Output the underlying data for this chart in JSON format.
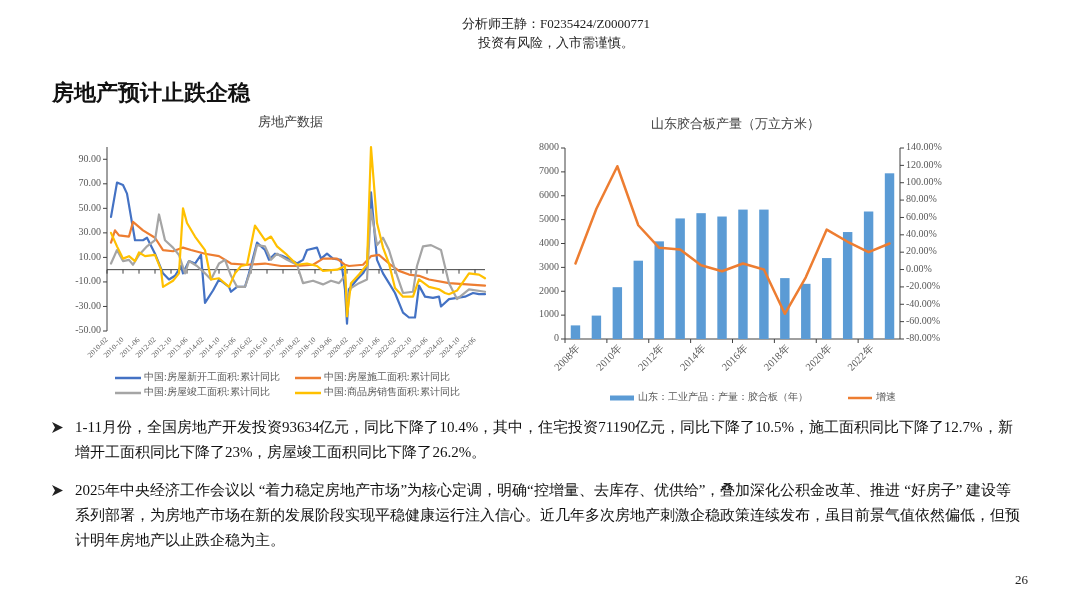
{
  "chart_data": [
    {
      "type": "other",
      "title": "房地产预计止跌企稳",
      "annotations": [
        "分析师王静：F0235424/Z0000771",
        "投资有风险，入市需谨慎。",
        "1-11月份，全国房地产开发投资93634亿元，同比下降了10.4%，其中，住宅投资71190亿元，同比下降了10.5%，施工面积同比下降了12.7%，新增开工面积同比下降了23%，房屋竣工面积同比下降了26.2%。",
        "2025年中央经济工作会议以 “着力稳定房地产市场”为核心定调，明确“控增量、去库存、优供给”，叠加深化公积金改革、推进 “好房子” 建设等系列部署，为房地产市场在新的发展阶段实现平稳健康运行注入信心。近几年多次房地产刺激企稳政策连续发布，虽目前景气值依然偏低，但预计明年房地产以止跌企稳为主。",
        "26"
      ]
    },
    {
      "type": "line",
      "title": "房地产数据",
      "legend": "bottom",
      "xlim": [
        "2010-02",
        "2025-11"
      ],
      "xticks": [
        "2010-02",
        "2010-10",
        "2011-06",
        "2012-02",
        "2012-10",
        "2013-06",
        "2014-02",
        "2014-10",
        "2015-06",
        "2016-02",
        "2016-10",
        "2017-06",
        "2018-02",
        "2018-10",
        "2019-06",
        "2020-02",
        "2020-10",
        "2021-06",
        "2022-02",
        "2022-10",
        "2023-06",
        "2024-02",
        "2024-10",
        "2025-06"
      ],
      "ylim": [
        -50,
        100
      ],
      "yticks": [
        {
          "value": -50,
          "label": "-50.00"
        },
        {
          "value": -30,
          "label": "-30.00"
        },
        {
          "value": -10,
          "label": "-10.00"
        },
        {
          "value": 10,
          "label": "10.00"
        },
        {
          "value": 30,
          "label": "30.00"
        },
        {
          "value": 50,
          "label": "50.00"
        },
        {
          "value": 70,
          "label": "70.00"
        },
        {
          "value": 90,
          "label": "90.00"
        }
      ],
      "series": [
        {
          "name": "中国:房屋新开工面积:累计同比",
          "color": "#4472c4",
          "x": [
            "2010-04",
            "2010-07",
            "2010-10",
            "2010-12",
            "2011-02",
            "2011-04",
            "2011-08",
            "2011-10",
            "2012-02",
            "2012-06",
            "2012-09",
            "2012-12",
            "2013-03",
            "2013-04",
            "2013-07",
            "2013-10",
            "2014-01",
            "2014-03",
            "2014-07",
            "2014-10",
            "2015-03",
            "2015-04",
            "2015-07",
            "2015-11",
            "2016-01",
            "2016-05",
            "2016-09",
            "2016-11",
            "2017-02",
            "2017-06",
            "2017-10",
            "2018-01",
            "2018-04",
            "2018-06",
            "2018-11",
            "2019-01",
            "2019-04",
            "2019-07",
            "2019-11",
            "2020-01",
            "2020-02",
            "2020-03",
            "2020-07",
            "2020-10",
            "2020-12",
            "2021-02",
            "2021-05",
            "2021-08",
            "2021-11",
            "2022-02",
            "2022-06",
            "2022-09",
            "2022-12",
            "2023-02",
            "2023-05",
            "2023-09",
            "2023-12",
            "2024-01",
            "2024-05",
            "2024-09",
            "2025-01",
            "2025-05",
            "2025-08",
            "2025-11"
          ],
          "values": [
            43,
            71,
            69,
            62,
            43,
            24,
            24,
            26,
            13,
            -3,
            -8,
            -5,
            3,
            -3,
            7,
            5,
            12,
            -27,
            -17,
            -8,
            -14,
            -18,
            -14,
            -14,
            -3,
            22,
            16,
            8,
            13,
            11,
            8,
            5,
            8,
            16,
            18,
            9,
            13,
            9,
            8,
            -16,
            -44,
            -16,
            -8,
            -3,
            3,
            63,
            8,
            -3,
            -11,
            -19,
            -35,
            -39,
            -39,
            -13,
            -22,
            -23,
            -22,
            -30,
            -24,
            -23,
            -22,
            -19,
            -20,
            -20
          ]
        },
        {
          "name": "中国:房屋施工面积:累计同比",
          "color": "#ed7d31",
          "x": [
            "2010-04",
            "2010-06",
            "2010-08",
            "2011-01",
            "2011-03",
            "2011-08",
            "2012-02",
            "2012-06",
            "2012-11",
            "2013-04",
            "2013-08",
            "2014-03",
            "2014-10",
            "2015-04",
            "2015-12",
            "2016-09",
            "2017-05",
            "2018-01",
            "2018-09",
            "2019-02",
            "2019-09",
            "2020-01",
            "2020-03",
            "2020-10",
            "2021-02",
            "2021-06",
            "2021-11",
            "2022-04",
            "2022-09",
            "2023-02",
            "2023-07",
            "2024-05",
            "2025-11"
          ],
          "values": [
            22,
            32,
            28,
            27,
            39,
            32,
            26,
            16,
            15,
            18,
            16,
            13,
            11,
            5,
            4,
            5,
            3,
            3,
            4,
            9,
            9,
            4,
            3,
            4,
            11,
            12,
            5,
            -1,
            -4,
            -5,
            -8,
            -11,
            -13
          ]
        },
        {
          "name": "中国:房屋竣工面积:累计同比",
          "color": "#a5a5a5",
          "x": [
            "2010-04",
            "2010-07",
            "2010-10",
            "2011-01",
            "2011-03",
            "2011-06",
            "2011-10",
            "2012-02",
            "2012-04",
            "2012-07",
            "2012-11",
            "2013-02",
            "2013-05",
            "2013-07",
            "2013-11",
            "2014-03",
            "2014-06",
            "2014-10",
            "2015-01",
            "2015-04",
            "2015-07",
            "2015-11",
            "2016-02",
            "2016-05",
            "2016-09",
            "2016-12",
            "2017-03",
            "2017-08",
            "2018-01",
            "2018-04",
            "2018-09",
            "2019-02",
            "2019-06",
            "2019-10",
            "2020-01",
            "2020-02",
            "2020-04",
            "2020-08",
            "2020-12",
            "2021-02",
            "2021-05",
            "2021-08",
            "2021-11",
            "2022-02",
            "2022-06",
            "2022-11",
            "2023-01",
            "2023-04",
            "2023-08",
            "2024-01",
            "2024-05",
            "2024-09",
            "2025-03",
            "2025-11"
          ],
          "values": [
            5,
            16,
            7,
            8,
            4,
            12,
            19,
            24,
            45,
            24,
            18,
            12,
            -3,
            7,
            3,
            -3,
            -8,
            5,
            8,
            -5,
            -14,
            -14,
            0,
            20,
            19,
            8,
            13,
            8,
            4,
            -11,
            -9,
            -12,
            -9,
            -11,
            -5,
            -24,
            -15,
            -11,
            -8,
            49,
            20,
            26,
            16,
            0,
            -19,
            -18,
            3,
            19,
            20,
            16,
            -11,
            -24,
            -16,
            -18
          ]
        },
        {
          "name": "中国:商品房销售面积:累计同比",
          "color": "#ffc000",
          "x": [
            "2010-04",
            "2010-07",
            "2010-10",
            "2011-01",
            "2011-04",
            "2011-06",
            "2011-09",
            "2012-02",
            "2012-05",
            "2012-06",
            "2012-11",
            "2013-02",
            "2013-04",
            "2013-06",
            "2013-10",
            "2014-03",
            "2014-06",
            "2014-10",
            "2015-03",
            "2015-06",
            "2015-09",
            "2015-12",
            "2016-04",
            "2016-09",
            "2016-12",
            "2017-03",
            "2017-08",
            "2018-01",
            "2018-06",
            "2018-11",
            "2019-02",
            "2019-09",
            "2020-01",
            "2020-02",
            "2020-04",
            "2020-08",
            "2020-12",
            "2021-02",
            "2021-05",
            "2021-08",
            "2021-11",
            "2022-02",
            "2022-06",
            "2022-11",
            "2023-02",
            "2023-07",
            "2023-12",
            "2024-03",
            "2024-05",
            "2024-09",
            "2025-03",
            "2025-08",
            "2025-11"
          ],
          "values": [
            30,
            19,
            9,
            11,
            7,
            14,
            11,
            12,
            0,
            -14,
            -9,
            -3,
            50,
            38,
            27,
            16,
            -8,
            -7,
            -14,
            -3,
            3,
            4,
            36,
            24,
            27,
            19,
            12,
            4,
            5,
            3,
            -1,
            0,
            3,
            -38,
            -11,
            -4,
            4,
            100,
            38,
            18,
            5,
            -15,
            -22,
            -22,
            -8,
            -14,
            -16,
            -19,
            -20,
            -17,
            -3,
            -4,
            -7
          ]
        }
      ]
    },
    {
      "type": "bar",
      "title": "山东胶合板产量（万立方米）",
      "legend": "bottom",
      "categories": [
        "2008年",
        null,
        "2010年",
        null,
        "2012年",
        null,
        "2014年",
        null,
        "2016年",
        null,
        "2018年",
        null,
        "2020年",
        null,
        "2022年",
        null
      ],
      "ylim": [
        0,
        8000
      ],
      "yticks": [
        0,
        1000,
        2000,
        3000,
        4000,
        5000,
        6000,
        7000,
        8000
      ],
      "y2lim": [
        -80,
        140
      ],
      "y2ticks": [
        {
          "value": -80,
          "label": "-80.00%"
        },
        {
          "value": -60,
          "label": "-60.00%"
        },
        {
          "value": -40,
          "label": "-40.00%"
        },
        {
          "value": -20,
          "label": "-20.00%"
        },
        {
          "value": 0,
          "label": "0.00%"
        },
        {
          "value": 20,
          "label": "20.00%"
        },
        {
          "value": 40,
          "label": "40.00%"
        },
        {
          "value": 60,
          "label": "60.00%"
        },
        {
          "value": 80,
          "label": "80.00%"
        },
        {
          "value": 100,
          "label": "100.00%"
        },
        {
          "value": 120,
          "label": "120.00%"
        },
        {
          "value": 140,
          "label": "140.00%"
        }
      ],
      "series": [
        {
          "name": "山东：工业产品：产量：胶合板（年）",
          "color": "#5b9bd5",
          "values": [
            570,
            980,
            2170,
            3280,
            4090,
            5050,
            5270,
            5130,
            5420,
            5420,
            2550,
            2310,
            3390,
            4480,
            5340,
            6940
          ]
        },
        {
          "name": "增速",
          "type": "line",
          "axis": "y2",
          "color": "#ed7d31",
          "values": [
            7,
            70,
            119,
            51,
            25,
            23,
            5,
            -2,
            7,
            0,
            -51,
            -9,
            46,
            32,
            20,
            30
          ]
        }
      ]
    }
  ]
}
